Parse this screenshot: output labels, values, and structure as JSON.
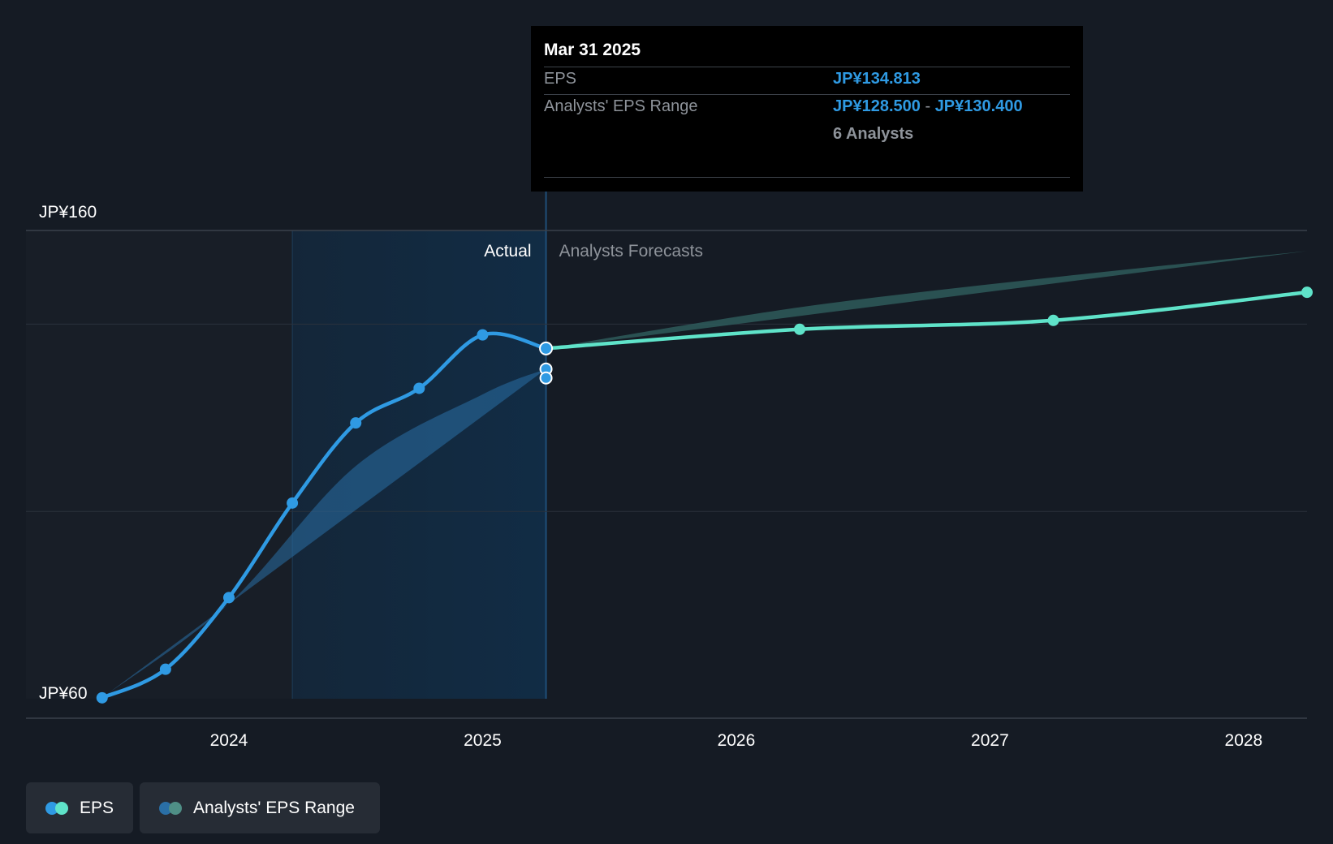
{
  "tooltip": {
    "date": "Mar 31 2025",
    "eps_label": "EPS",
    "eps_value": "JP¥134.813",
    "range_label": "Analysts' EPS Range",
    "range_low": "JP¥128.500",
    "range_sep": "-",
    "range_high": "JP¥130.400",
    "analysts": "6 Analysts"
  },
  "legend": {
    "eps_label": "EPS",
    "range_label": "Analysts' EPS Range"
  },
  "colors": {
    "background": "#151b24",
    "actual_line": "#2f9ae3",
    "forecast_line": "#5fe3c9",
    "forecast_band": "#2e5a5a",
    "highlight_region": "#112c45",
    "range_band": "#2a6fa6"
  },
  "chart_data": {
    "type": "line",
    "y_ticks": [
      {
        "value": 160,
        "label": "JP¥160"
      },
      {
        "value": 60,
        "label": "JP¥60"
      }
    ],
    "x_ticks": [
      {
        "value": 2024,
        "label": "2024"
      },
      {
        "value": 2025,
        "label": "2025"
      },
      {
        "value": 2026,
        "label": "2026"
      },
      {
        "value": 2027,
        "label": "2027"
      },
      {
        "value": 2028,
        "label": "2028"
      }
    ],
    "xlim": [
      2023.2,
      2028.25
    ],
    "ylim": [
      60,
      160
    ],
    "grid": true,
    "divider_x": 2025.25,
    "highlight_start_x": 2024.25,
    "region_labels": {
      "actual": "Actual",
      "forecast": "Analysts Forecasts"
    },
    "series": [
      {
        "name": "EPS",
        "points": [
          [
            2023.5,
            60.2
          ],
          [
            2023.75,
            66.3
          ],
          [
            2024.0,
            81.6
          ],
          [
            2024.25,
            101.8
          ],
          [
            2024.5,
            118.9
          ],
          [
            2024.75,
            126.3
          ],
          [
            2025.0,
            137.7
          ],
          [
            2025.25,
            134.8
          ]
        ]
      },
      {
        "name": "EPS forecast",
        "points": [
          [
            2025.25,
            134.8
          ],
          [
            2026.25,
            138.9
          ],
          [
            2027.25,
            140.8
          ],
          [
            2028.25,
            146.8
          ]
        ]
      }
    ],
    "analysts_range_history": [
      {
        "x": 2023.5,
        "low": 60.2,
        "high": 60.2
      },
      {
        "x": 2024.0,
        "low": 78.0,
        "high": 80.3
      },
      {
        "x": 2024.5,
        "low": 105.8,
        "high": 109.7
      },
      {
        "x": 2025.0,
        "low": 122.5,
        "high": 125.0
      },
      {
        "x": 2025.25,
        "low": 128.5,
        "high": 130.4
      }
    ],
    "analysts_range_forecast": [
      {
        "x": 2025.25,
        "low": 134.8,
        "high": 134.8
      },
      {
        "x": 2026.25,
        "low": 127.5,
        "high": 143.6
      },
      {
        "x": 2027.25,
        "low": 120.8,
        "high": 150.0
      },
      {
        "x": 2028.25,
        "low": 136.5,
        "high": 155.6
      }
    ]
  }
}
